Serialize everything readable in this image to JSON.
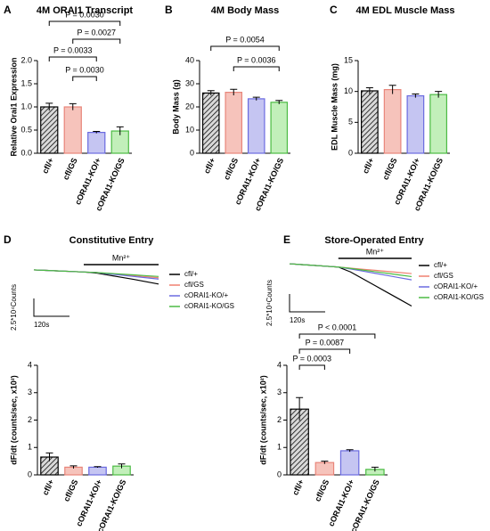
{
  "chart_data": [
    {
      "type": "bar",
      "label": "A",
      "title": "4M ORAI1 Transcript",
      "y_label": "Relative Orai1 Expression",
      "categories": [
        "cfl/+",
        "cfl/GS",
        "cORAI1-KO/+",
        "cORAI1-KO/GS"
      ],
      "values": [
        1.0,
        1.0,
        0.45,
        0.48
      ],
      "errors": [
        0.08,
        0.07,
        0.02,
        0.09
      ],
      "colors": [
        "#d9d9d9",
        "#f6c3bb",
        "#c5c5f2",
        "#c2efba"
      ],
      "edge_colors": [
        "#000000",
        "#e8857a",
        "#6a6ae0",
        "#4cbb44"
      ],
      "hatched": [
        true,
        false,
        false,
        false
      ],
      "ylim": [
        0,
        2
      ],
      "yticks": [
        {
          "value": 0,
          "label": "0.0"
        },
        0.5,
        {
          "value": 1,
          "label": "1.0"
        },
        1.5,
        {
          "value": 2,
          "label": "2.0"
        }
      ],
      "comparisons": [
        {
          "label": "P = 0.0030",
          "pair": [
            0,
            3
          ]
        },
        {
          "label": "P = 0.0027",
          "pair": [
            1,
            3
          ]
        },
        {
          "label": "P = 0.0033",
          "pair": [
            0,
            2
          ]
        },
        {
          "label": "P = 0.0030",
          "pair": [
            1,
            2
          ]
        }
      ]
    },
    {
      "type": "bar",
      "label": "B",
      "title": "4M Body Mass",
      "y_label": "Body Mass (g)",
      "categories": [
        "cfl/+",
        "cfl/GS",
        "cORAI1-KO/+",
        "cORAI1-KO/GS"
      ],
      "values": [
        26,
        26.3,
        23.5,
        22
      ],
      "errors": [
        1.0,
        1.3,
        0.7,
        0.8
      ],
      "colors": [
        "#d9d9d9",
        "#f6c3bb",
        "#c5c5f2",
        "#c2efba"
      ],
      "edge_colors": [
        "#000000",
        "#e8857a",
        "#6a6ae0",
        "#4cbb44"
      ],
      "hatched": [
        true,
        false,
        false,
        false
      ],
      "ylim": [
        0,
        40
      ],
      "yticks": [
        0,
        10,
        20,
        30,
        40
      ],
      "comparisons": [
        {
          "label": "P = 0.0054",
          "pair": [
            0,
            3
          ]
        },
        {
          "label": "P = 0.0036",
          "pair": [
            1,
            3
          ]
        }
      ]
    },
    {
      "type": "bar",
      "label": "C",
      "title": "4M EDL Muscle Mass",
      "y_label": "EDL Muscle Mass (mg)",
      "categories": [
        "cfl/+",
        "cfl/GS",
        "cORAI1-KO/+",
        "cORAI1-KO/GS"
      ],
      "values": [
        10.1,
        10.3,
        9.3,
        9.5
      ],
      "errors": [
        0.5,
        0.7,
        0.3,
        0.5
      ],
      "colors": [
        "#d9d9d9",
        "#f6c3bb",
        "#c5c5f2",
        "#c2efba"
      ],
      "edge_colors": [
        "#000000",
        "#e8857a",
        "#6a6ae0",
        "#4cbb44"
      ],
      "hatched": [
        true,
        false,
        false,
        false
      ],
      "ylim": [
        0,
        15
      ],
      "yticks": [
        0,
        5,
        10,
        15
      ],
      "comparisons": []
    },
    {
      "type": "line",
      "label": "D",
      "title": "Constitutive Entry",
      "stimulus": {
        "label": "Mn²⁺",
        "x": [
          4,
          10
        ]
      },
      "scale_y_label": "2.5*10⁴Counts",
      "scale_x_label": "120s",
      "x": [
        0,
        1,
        2,
        3,
        4,
        5,
        6,
        7,
        8,
        9,
        10
      ],
      "xlim": [
        0,
        10
      ],
      "ylim": [
        -16,
        1
      ],
      "series": [
        {
          "name": "cfl/+",
          "color": "#000000",
          "values": [
            0,
            -0.2,
            -0.4,
            -0.6,
            -0.8,
            -1.2,
            -2.0,
            -2.8,
            -3.6,
            -4.5,
            -5.4
          ]
        },
        {
          "name": "cfl/GS",
          "color": "#f08070",
          "values": [
            0,
            -0.2,
            -0.4,
            -0.6,
            -0.8,
            -1.0,
            -1.4,
            -1.8,
            -2.2,
            -2.6,
            -3.0
          ]
        },
        {
          "name": "cORAI1-KO/+",
          "color": "#6a6ae0",
          "values": [
            0,
            -0.2,
            -0.4,
            -0.6,
            -0.8,
            -1.0,
            -1.5,
            -2.0,
            -2.5,
            -3.0,
            -3.5
          ]
        },
        {
          "name": "cORAI1-KO/GS",
          "color": "#4cbb44",
          "values": [
            0,
            -0.2,
            -0.4,
            -0.6,
            -0.8,
            -1.0,
            -1.3,
            -1.6,
            -1.9,
            -2.2,
            -2.5
          ]
        }
      ]
    },
    {
      "type": "line",
      "label": "E",
      "title": "Store-Operated Entry",
      "stimulus": {
        "label": "Mn²⁺",
        "x": [
          4,
          10
        ]
      },
      "scale_y_label": "2.5*10⁴Counts",
      "scale_x_label": "120s",
      "x": [
        0,
        1,
        2,
        3,
        4,
        5,
        6,
        7,
        8,
        9,
        10
      ],
      "xlim": [
        0,
        10
      ],
      "ylim": [
        -16,
        1
      ],
      "series": [
        {
          "name": "cfl/+",
          "color": "#000000",
          "values": [
            0,
            -0.3,
            -0.6,
            -0.9,
            -1.2,
            -3.0,
            -5.5,
            -8.0,
            -10.5,
            -13.0,
            -15.5
          ]
        },
        {
          "name": "cfl/GS",
          "color": "#f08070",
          "values": [
            0,
            -0.3,
            -0.6,
            -0.9,
            -1.2,
            -1.6,
            -2.0,
            -2.4,
            -2.8,
            -3.2,
            -3.6
          ]
        },
        {
          "name": "cORAI1-KO/+",
          "color": "#6a6ae0",
          "values": [
            0,
            -0.3,
            -0.6,
            -0.9,
            -1.2,
            -1.9,
            -2.7,
            -3.5,
            -4.3,
            -5.1,
            -5.9
          ]
        },
        {
          "name": "cORAI1-KO/GS",
          "color": "#4cbb44",
          "values": [
            0,
            -0.3,
            -0.6,
            -0.9,
            -1.2,
            -1.7,
            -2.3,
            -2.9,
            -3.5,
            -4.1,
            -4.7
          ]
        }
      ]
    },
    {
      "type": "bar",
      "y_label": "dF/dt (counts/sec, x10²)",
      "categories": [
        "cfl/+",
        "cfl/GS",
        "cORAI1-KO/+",
        "cORAI1-KO/GS"
      ],
      "values": [
        0.65,
        0.28,
        0.28,
        0.32
      ],
      "errors": [
        0.15,
        0.05,
        0.02,
        0.08
      ],
      "colors": [
        "#d9d9d9",
        "#f6c3bb",
        "#c5c5f2",
        "#c2efba"
      ],
      "edge_colors": [
        "#000000",
        "#e8857a",
        "#6a6ae0",
        "#4cbb44"
      ],
      "hatched": [
        true,
        false,
        false,
        false
      ],
      "ylim": [
        0,
        4
      ],
      "yticks": [
        0,
        1,
        2,
        3,
        4
      ],
      "comparisons": []
    },
    {
      "type": "bar",
      "y_label": "dF/dt (counts/sec, x10²)",
      "categories": [
        "cfl/+",
        "cfl/GS",
        "cORAI1-KO/+",
        "cORAI1-KO/GS"
      ],
      "values": [
        2.4,
        0.45,
        0.88,
        0.2
      ],
      "errors": [
        0.42,
        0.05,
        0.04,
        0.08
      ],
      "colors": [
        "#d9d9d9",
        "#f6c3bb",
        "#c5c5f2",
        "#c2efba"
      ],
      "edge_colors": [
        "#000000",
        "#e8857a",
        "#6a6ae0",
        "#4cbb44"
      ],
      "hatched": [
        true,
        false,
        false,
        false
      ],
      "ylim": [
        0,
        4
      ],
      "yticks": [
        0,
        1,
        2,
        3,
        4
      ],
      "comparisons": [
        {
          "label": "P < 0.0001",
          "pair": [
            0,
            3
          ]
        },
        {
          "label": "P = 0.0087",
          "pair": [
            0,
            2
          ]
        },
        {
          "label": "P = 0.0003",
          "pair": [
            0,
            1
          ]
        }
      ]
    }
  ]
}
